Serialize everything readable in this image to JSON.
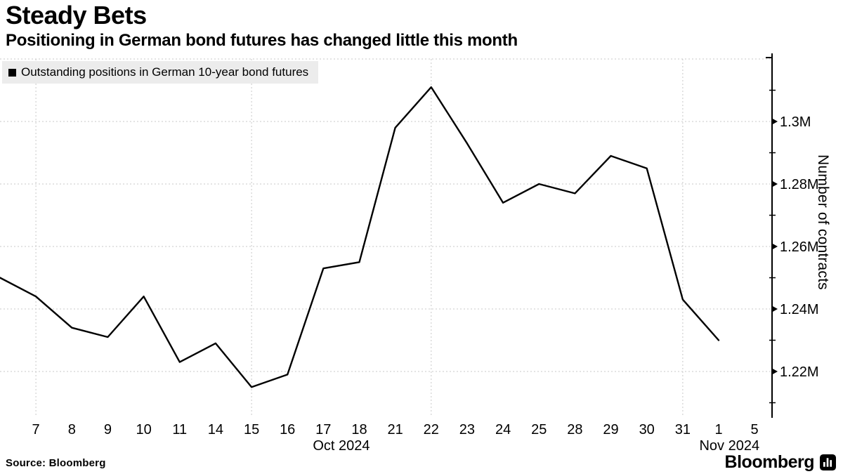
{
  "header": {
    "title": "Steady Bets",
    "subtitle": "Positioning in German bond futures has changed little this month"
  },
  "legend": {
    "label": "Outstanding positions in German 10-year bond futures",
    "swatch_icon": "black-square-series-marker"
  },
  "source": {
    "label": "Source: Bloomberg"
  },
  "branding": {
    "logo_text": "Bloomberg",
    "logo_icon": "bloomberg-bars-icon"
  },
  "colors": {
    "series_line": "#000000",
    "gridline": "#c9c9c9",
    "axis": "#000000",
    "legend_background": "#ececec",
    "text": "#000000"
  },
  "chart_data": {
    "type": "line",
    "title": "Steady Bets",
    "subtitle": "Positioning in German bond futures has changed little this month",
    "legend_position": "top-left",
    "grid": true,
    "series": [
      {
        "name": "Outstanding positions in German 10-year bond futures",
        "color": "#000000",
        "units": "millions of contracts",
        "points": [
          {
            "date": "Oct 4",
            "value_m": 1.25
          },
          {
            "date": "Oct 7",
            "value_m": 1.244
          },
          {
            "date": "Oct 8",
            "value_m": 1.234
          },
          {
            "date": "Oct 9",
            "value_m": 1.231
          },
          {
            "date": "Oct 10",
            "value_m": 1.244
          },
          {
            "date": "Oct 11",
            "value_m": 1.223
          },
          {
            "date": "Oct 14",
            "value_m": 1.229
          },
          {
            "date": "Oct 15",
            "value_m": 1.215
          },
          {
            "date": "Oct 16",
            "value_m": 1.219
          },
          {
            "date": "Oct 17",
            "value_m": 1.253
          },
          {
            "date": "Oct 18",
            "value_m": 1.255
          },
          {
            "date": "Oct 21",
            "value_m": 1.298
          },
          {
            "date": "Oct 22",
            "value_m": 1.311
          },
          {
            "date": "Oct 23",
            "value_m": 1.293
          },
          {
            "date": "Oct 24",
            "value_m": 1.274
          },
          {
            "date": "Oct 25",
            "value_m": 1.28
          },
          {
            "date": "Oct 28",
            "value_m": 1.277
          },
          {
            "date": "Oct 29",
            "value_m": 1.289
          },
          {
            "date": "Oct 30",
            "value_m": 1.285
          },
          {
            "date": "Oct 31",
            "value_m": 1.243
          },
          {
            "date": "Nov 1",
            "value_m": 1.23
          }
        ]
      }
    ],
    "x_ticks": [
      {
        "label": "7",
        "slot": 1,
        "grid": true
      },
      {
        "label": "8",
        "slot": 2
      },
      {
        "label": "9",
        "slot": 3
      },
      {
        "label": "10",
        "slot": 4
      },
      {
        "label": "11",
        "slot": 5
      },
      {
        "label": "14",
        "slot": 6
      },
      {
        "label": "15",
        "slot": 7,
        "grid": true
      },
      {
        "label": "16",
        "slot": 8
      },
      {
        "label": "17",
        "slot": 9
      },
      {
        "label": "18",
        "slot": 10
      },
      {
        "label": "21",
        "slot": 11
      },
      {
        "label": "22",
        "slot": 12,
        "grid": true
      },
      {
        "label": "23",
        "slot": 13
      },
      {
        "label": "24",
        "slot": 14
      },
      {
        "label": "25",
        "slot": 15
      },
      {
        "label": "28",
        "slot": 16
      },
      {
        "label": "29",
        "slot": 17
      },
      {
        "label": "30",
        "slot": 18
      },
      {
        "label": "31",
        "slot": 19,
        "grid": true
      },
      {
        "label": "1",
        "slot": 20
      },
      {
        "label": "5",
        "slot": 21
      }
    ],
    "months": [
      {
        "label": "Oct 2024",
        "anchor_slot": 9.5
      },
      {
        "label": "Nov 2024",
        "anchor_slot": 20.3
      }
    ],
    "y_axis": {
      "label": "Number of contracts",
      "side": "right",
      "ticks": [
        {
          "label": "1.3M",
          "value": 1.3
        },
        {
          "label": "1.28M",
          "value": 1.28
        },
        {
          "label": "1.26M",
          "value": 1.26
        },
        {
          "label": "1.24M",
          "value": 1.24
        },
        {
          "label": "1.22M",
          "value": 1.22
        }
      ],
      "minor_tick_values": [
        1.31,
        1.29,
        1.27,
        1.25,
        1.23,
        1.21
      ],
      "gridline_values": [
        1.32,
        1.3,
        1.28,
        1.26,
        1.24,
        1.22
      ],
      "ylim": [
        1.205,
        1.325
      ]
    }
  }
}
